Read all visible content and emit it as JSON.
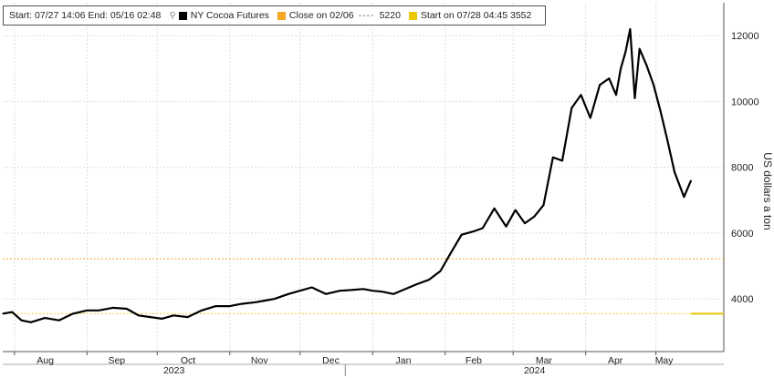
{
  "legend": {
    "range_start_label": "Start: 07/27 14:06",
    "range_end_label": "End: 05/16 02:48",
    "series_label": "NY Cocoa Futures",
    "close_label": "Close on 02/06",
    "close_value": "5220",
    "start_label": "Start on 07/28 04:45",
    "start_value": "3552"
  },
  "colors": {
    "series": "#000000",
    "close_line": "#f5a623",
    "start_line": "#e8c800",
    "grid": "#dddddd"
  },
  "chart_data": {
    "type": "line",
    "title": "",
    "ylabel": "US dollars a ton",
    "ylim": [
      2400,
      13000
    ],
    "yticks": [
      4000,
      6000,
      8000,
      10000,
      12000
    ],
    "x_months": [
      "Aug",
      "Sep",
      "Oct",
      "Nov",
      "Dec",
      "Jan",
      "Feb",
      "Mar",
      "Apr",
      "May"
    ],
    "x_years": [
      "2023",
      "2024"
    ],
    "grid": true,
    "series": [
      {
        "name": "NY Cocoa Futures",
        "x": [
          "2023-07-27",
          "2023-07-31",
          "2023-08-04",
          "2023-08-08",
          "2023-08-14",
          "2023-08-20",
          "2023-08-26",
          "2023-09-01",
          "2023-09-06",
          "2023-09-12",
          "2023-09-18",
          "2023-09-23",
          "2023-09-28",
          "2023-10-03",
          "2023-10-08",
          "2023-10-14",
          "2023-10-20",
          "2023-10-26",
          "2023-11-01",
          "2023-11-06",
          "2023-11-12",
          "2023-11-16",
          "2023-11-20",
          "2023-11-26",
          "2023-12-01",
          "2023-12-06",
          "2023-12-12",
          "2023-12-18",
          "2023-12-23",
          "2023-12-28",
          "2024-01-01",
          "2024-01-05",
          "2024-01-10",
          "2024-01-15",
          "2024-01-20",
          "2024-01-25",
          "2024-01-30",
          "2024-02-03",
          "2024-02-08",
          "2024-02-13",
          "2024-02-17",
          "2024-02-22",
          "2024-02-27",
          "2024-03-02",
          "2024-03-06",
          "2024-03-10",
          "2024-03-14",
          "2024-03-18",
          "2024-03-22",
          "2024-03-26",
          "2024-03-30",
          "2024-04-03",
          "2024-04-07",
          "2024-04-11",
          "2024-04-14",
          "2024-04-16",
          "2024-04-18",
          "2024-04-20",
          "2024-04-22",
          "2024-04-24",
          "2024-04-27",
          "2024-04-30",
          "2024-05-03",
          "2024-05-06",
          "2024-05-09",
          "2024-05-13",
          "2024-05-16"
        ],
        "values": [
          3552,
          3600,
          3350,
          3290,
          3420,
          3350,
          3550,
          3650,
          3650,
          3730,
          3700,
          3500,
          3450,
          3400,
          3500,
          3450,
          3650,
          3780,
          3780,
          3850,
          3900,
          3950,
          4000,
          4150,
          4250,
          4350,
          4150,
          4250,
          4270,
          4300,
          4250,
          4220,
          4150,
          4300,
          4450,
          4580,
          4850,
          5350,
          5950,
          6050,
          6150,
          6750,
          6200,
          6700,
          6300,
          6500,
          6850,
          8300,
          8200,
          9800,
          10200,
          9500,
          10500,
          10700,
          10200,
          11000,
          11500,
          12200,
          10100,
          11600,
          11100,
          10500,
          9700,
          8800,
          7850,
          7100,
          7600
        ]
      }
    ],
    "reference_lines": [
      {
        "name": "Close on 02/06",
        "value": 5220,
        "style": "dotted",
        "color": "#f5a623"
      },
      {
        "name": "Start on 07/28 04:45",
        "value": 3552,
        "style": "solid",
        "color": "#e8c800",
        "from": "2024-05-16"
      }
    ]
  }
}
